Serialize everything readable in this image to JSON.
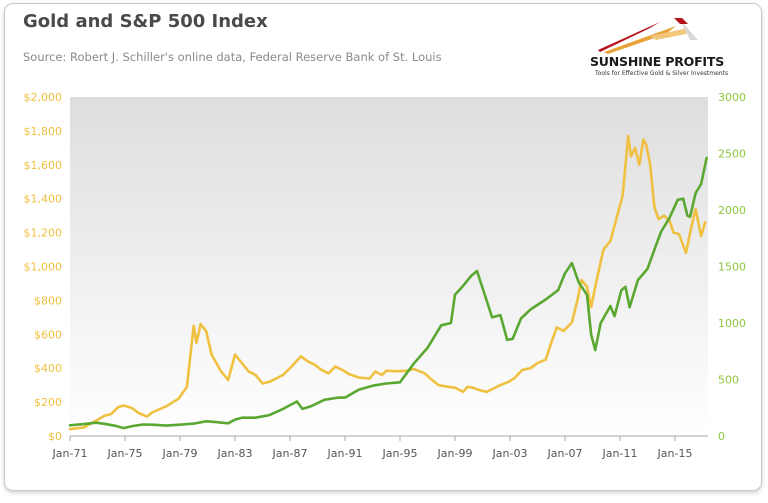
{
  "header": {
    "title": "Gold and S&P 500 Index",
    "subtitle": "Source: Robert J. Schiller's online data, Federal Reserve Bank of St. Louis"
  },
  "logo": {
    "name": "SUNSHINE PROFITS",
    "tagline": "Tools for Effective Gold & Silver Investments",
    "colors": [
      "#b5121b",
      "#e8a33a",
      "#9a9a9a"
    ]
  },
  "chart_data": {
    "type": "line",
    "title": "Gold and S&P 500 Index",
    "grid": false,
    "legend": "none",
    "x_ticks": [
      "Jan-71",
      "Jan-75",
      "Jan-79",
      "Jan-83",
      "Jan-87",
      "Jan-91",
      "Jan-95",
      "Jan-99",
      "Jan-03",
      "Jan-07",
      "Jan-11",
      "Jan-15"
    ],
    "xlim": [
      1971.0,
      2017.4
    ],
    "y_left": {
      "ticks": [
        "$0",
        "$200",
        "$400",
        "$600",
        "$800",
        "$1,000",
        "$1,200",
        "$1,400",
        "$1,600",
        "$1,800",
        "$2,000"
      ],
      "ylim": [
        0,
        2000
      ]
    },
    "y_right": {
      "ticks": [
        "0",
        "500",
        "1000",
        "1500",
        "2000",
        "2500",
        "3000"
      ],
      "ylim": [
        0,
        3000
      ]
    },
    "series": [
      {
        "color": "#f0c040",
        "axis": "left",
        "points": [
          [
            1971.0,
            40
          ],
          [
            1972.0,
            50
          ],
          [
            1973.0,
            95
          ],
          [
            1973.5,
            120
          ],
          [
            1974.0,
            130
          ],
          [
            1974.5,
            170
          ],
          [
            1974.9,
            180
          ],
          [
            1975.5,
            165
          ],
          [
            1976.0,
            135
          ],
          [
            1976.6,
            115
          ],
          [
            1977.0,
            140
          ],
          [
            1978.0,
            175
          ],
          [
            1978.9,
            220
          ],
          [
            1979.5,
            290
          ],
          [
            1980.0,
            650
          ],
          [
            1980.2,
            550
          ],
          [
            1980.5,
            660
          ],
          [
            1980.9,
            620
          ],
          [
            1981.3,
            480
          ],
          [
            1982.0,
            380
          ],
          [
            1982.5,
            330
          ],
          [
            1983.0,
            480
          ],
          [
            1983.5,
            430
          ],
          [
            1984.0,
            380
          ],
          [
            1984.5,
            360
          ],
          [
            1985.0,
            310
          ],
          [
            1985.5,
            320
          ],
          [
            1986.0,
            340
          ],
          [
            1986.5,
            360
          ],
          [
            1987.0,
            400
          ],
          [
            1987.8,
            470
          ],
          [
            1988.3,
            440
          ],
          [
            1988.8,
            420
          ],
          [
            1989.3,
            390
          ],
          [
            1989.8,
            370
          ],
          [
            1990.3,
            410
          ],
          [
            1990.8,
            390
          ],
          [
            1991.3,
            365
          ],
          [
            1992.0,
            345
          ],
          [
            1992.8,
            340
          ],
          [
            1993.2,
            380
          ],
          [
            1993.7,
            360
          ],
          [
            1994.0,
            385
          ],
          [
            1994.8,
            382
          ],
          [
            1995.5,
            385
          ],
          [
            1996.0,
            395
          ],
          [
            1996.8,
            370
          ],
          [
            1997.2,
            340
          ],
          [
            1997.8,
            300
          ],
          [
            1998.5,
            290
          ],
          [
            1999.0,
            285
          ],
          [
            1999.6,
            260
          ],
          [
            1999.9,
            290
          ],
          [
            2000.3,
            285
          ],
          [
            2000.8,
            270
          ],
          [
            2001.3,
            260
          ],
          [
            2001.8,
            280
          ],
          [
            2002.3,
            300
          ],
          [
            2002.9,
            320
          ],
          [
            2003.3,
            340
          ],
          [
            2003.9,
            390
          ],
          [
            2004.5,
            400
          ],
          [
            2005.0,
            430
          ],
          [
            2005.6,
            450
          ],
          [
            2006.0,
            550
          ],
          [
            2006.4,
            640
          ],
          [
            2006.9,
            620
          ],
          [
            2007.5,
            670
          ],
          [
            2007.9,
            800
          ],
          [
            2008.2,
            920
          ],
          [
            2008.6,
            880
          ],
          [
            2008.9,
            760
          ],
          [
            2009.3,
            920
          ],
          [
            2009.8,
            1100
          ],
          [
            2010.3,
            1150
          ],
          [
            2010.8,
            1300
          ],
          [
            2011.2,
            1420
          ],
          [
            2011.6,
            1770
          ],
          [
            2011.8,
            1650
          ],
          [
            2012.1,
            1700
          ],
          [
            2012.4,
            1600
          ],
          [
            2012.7,
            1750
          ],
          [
            2012.9,
            1720
          ],
          [
            2013.2,
            1600
          ],
          [
            2013.5,
            1350
          ],
          [
            2013.8,
            1280
          ],
          [
            2014.2,
            1300
          ],
          [
            2014.6,
            1270
          ],
          [
            2014.9,
            1200
          ],
          [
            2015.3,
            1190
          ],
          [
            2015.8,
            1080
          ],
          [
            2016.1,
            1200
          ],
          [
            2016.5,
            1340
          ],
          [
            2016.9,
            1180
          ],
          [
            2017.2,
            1260
          ]
        ]
      },
      {
        "color": "#5aa832",
        "axis": "right",
        "points": [
          [
            1971.0,
            95
          ],
          [
            1972.0,
            105
          ],
          [
            1972.9,
            118
          ],
          [
            1973.5,
            108
          ],
          [
            1974.3,
            90
          ],
          [
            1974.9,
            70
          ],
          [
            1975.5,
            88
          ],
          [
            1976.3,
            102
          ],
          [
            1977.0,
            100
          ],
          [
            1978.0,
            92
          ],
          [
            1979.0,
            100
          ],
          [
            1980.0,
            110
          ],
          [
            1980.9,
            130
          ],
          [
            1981.5,
            125
          ],
          [
            1982.5,
            112
          ],
          [
            1983.0,
            145
          ],
          [
            1983.5,
            162
          ],
          [
            1984.5,
            162
          ],
          [
            1985.5,
            185
          ],
          [
            1986.5,
            240
          ],
          [
            1987.5,
            305
          ],
          [
            1987.9,
            240
          ],
          [
            1988.5,
            262
          ],
          [
            1989.5,
            320
          ],
          [
            1990.5,
            340
          ],
          [
            1991.0,
            340
          ],
          [
            1992.0,
            410
          ],
          [
            1993.0,
            445
          ],
          [
            1994.0,
            465
          ],
          [
            1995.0,
            475
          ],
          [
            1996.0,
            640
          ],
          [
            1997.0,
            780
          ],
          [
            1998.0,
            980
          ],
          [
            1998.7,
            1000
          ],
          [
            1999.0,
            1250
          ],
          [
            1999.6,
            1330
          ],
          [
            2000.2,
            1420
          ],
          [
            2000.6,
            1460
          ],
          [
            2001.3,
            1200
          ],
          [
            2001.7,
            1050
          ],
          [
            2002.3,
            1070
          ],
          [
            2002.8,
            850
          ],
          [
            2003.2,
            860
          ],
          [
            2003.8,
            1040
          ],
          [
            2004.5,
            1120
          ],
          [
            2005.5,
            1200
          ],
          [
            2006.5,
            1290
          ],
          [
            2007.0,
            1440
          ],
          [
            2007.5,
            1530
          ],
          [
            2008.0,
            1360
          ],
          [
            2008.6,
            1250
          ],
          [
            2008.9,
            900
          ],
          [
            2009.2,
            760
          ],
          [
            2009.6,
            1000
          ],
          [
            2010.3,
            1150
          ],
          [
            2010.6,
            1060
          ],
          [
            2011.1,
            1290
          ],
          [
            2011.4,
            1320
          ],
          [
            2011.7,
            1140
          ],
          [
            2012.3,
            1380
          ],
          [
            2013.0,
            1480
          ],
          [
            2013.6,
            1680
          ],
          [
            2014.0,
            1810
          ],
          [
            2014.6,
            1930
          ],
          [
            2015.2,
            2090
          ],
          [
            2015.6,
            2100
          ],
          [
            2015.9,
            1950
          ],
          [
            2016.1,
            1940
          ],
          [
            2016.5,
            2150
          ],
          [
            2016.9,
            2230
          ],
          [
            2017.3,
            2460
          ]
        ]
      }
    ]
  }
}
